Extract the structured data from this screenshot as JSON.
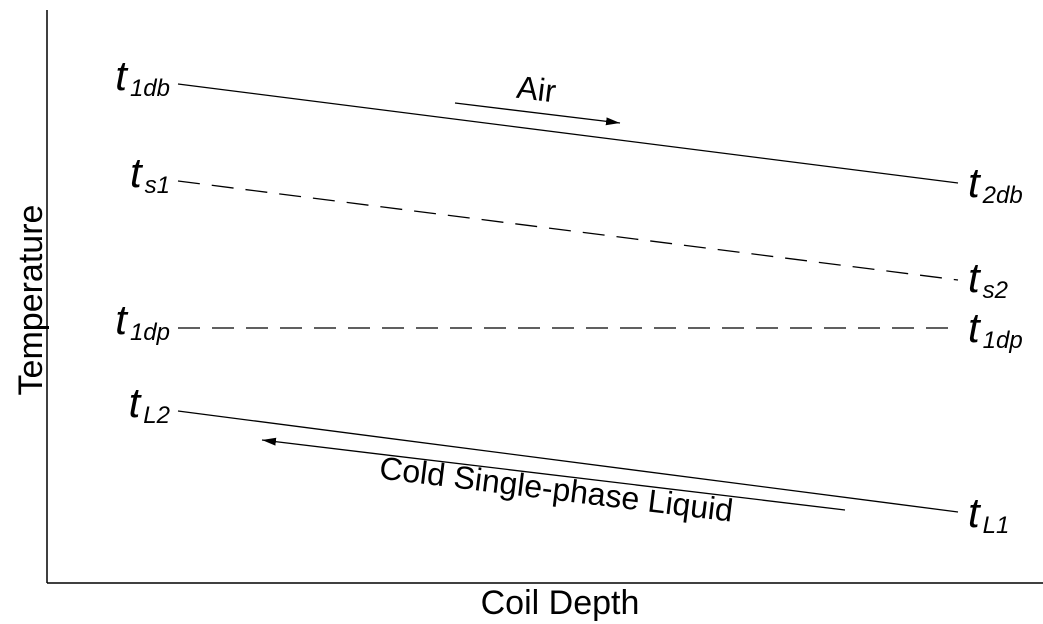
{
  "axes": {
    "y_label": "Temperature",
    "x_label": "Coil Depth"
  },
  "left_labels": [
    {
      "symbol": "t",
      "subscript": "1db"
    },
    {
      "symbol": "t",
      "subscript": "s1"
    },
    {
      "symbol": "t",
      "subscript": "1dp"
    },
    {
      "symbol": "t",
      "subscript": "L2"
    }
  ],
  "right_labels": [
    {
      "symbol": "t",
      "subscript": "2db"
    },
    {
      "symbol": "t",
      "subscript": "s2"
    },
    {
      "symbol": "t",
      "subscript": "1dp"
    },
    {
      "symbol": "t",
      "subscript": "L1"
    }
  ],
  "flows": {
    "air": "Air",
    "liquid": "Cold Single-phase Liquid"
  }
}
